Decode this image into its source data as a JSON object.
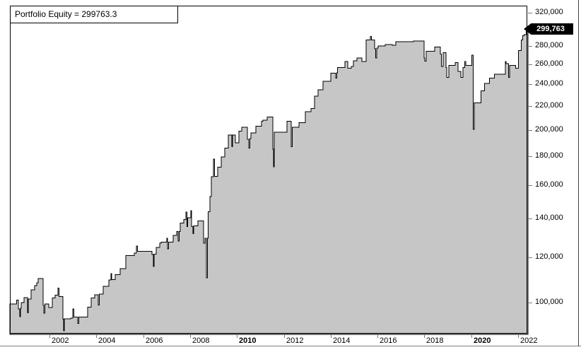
{
  "chart": {
    "title_label": "Portfolio Equity = 299763.3",
    "last_value_label": "299,763",
    "last_value": 299763.3,
    "colors": {
      "area_fill": "#C6C6C6",
      "line": "#000000",
      "badge_bg": "#000000",
      "badge_text": "#FFFFFF",
      "axis_text": "#000000",
      "tick": "#777777",
      "frame": "#000000",
      "background": "#FFFFFF"
    }
  },
  "chart_data": {
    "type": "area",
    "subtype": "step-after",
    "title": "Portfolio Equity = 299763.3",
    "legend_position": "top-left annotation box",
    "grid": false,
    "y_scale": "log",
    "y_axis_side": "right",
    "ylim": [
      88000,
      330000
    ],
    "xlim": [
      2000.3,
      2022.45
    ],
    "y_ticks": [
      320000,
      280000,
      260000,
      240000,
      220000,
      200000,
      180000,
      160000,
      140000,
      120000,
      100000
    ],
    "y_tick_labels": [
      "320,000",
      "280,000",
      "260,000",
      "240,000",
      "220,000",
      "200,000",
      "180,000",
      "160,000",
      "140,000",
      "120,000",
      "100,000"
    ],
    "x_ticks": [
      2002,
      2004,
      2006,
      2008,
      2010,
      2012,
      2014,
      2016,
      2018,
      2020,
      2022
    ],
    "x_tick_labels": [
      "2002",
      "2004",
      "2006",
      "2008",
      "2010",
      "2012",
      "2014",
      "2016",
      "2018",
      "2020",
      "2022"
    ],
    "bold_x_ticks": [
      2010,
      2020
    ],
    "final_value": 299763.3,
    "series": [
      {
        "name": "Portfolio Equity",
        "points": [
          [
            2000.31,
            99400
          ],
          [
            2000.59,
            101000
          ],
          [
            2000.67,
            97500
          ],
          [
            2000.73,
            94500
          ],
          [
            2000.77,
            97700
          ],
          [
            2000.8,
            100000
          ],
          [
            2000.91,
            102000
          ],
          [
            2001.06,
            96000
          ],
          [
            2001.1,
            101500
          ],
          [
            2001.22,
            105300
          ],
          [
            2001.37,
            107000
          ],
          [
            2001.46,
            108300
          ],
          [
            2001.52,
            110100
          ],
          [
            2001.73,
            98900
          ],
          [
            2001.76,
            95800
          ],
          [
            2001.8,
            99400
          ],
          [
            2001.97,
            98000
          ],
          [
            2002.12,
            101800
          ],
          [
            2002.24,
            103000
          ],
          [
            2002.36,
            106000
          ],
          [
            2002.4,
            102400
          ],
          [
            2002.57,
            93500
          ],
          [
            2002.6,
            89300
          ],
          [
            2002.64,
            93700
          ],
          [
            2002.9,
            94000
          ],
          [
            2003.0,
            97500
          ],
          [
            2003.04,
            94300
          ],
          [
            2003.21,
            92000
          ],
          [
            2003.25,
            94300
          ],
          [
            2003.63,
            98200
          ],
          [
            2003.78,
            101800
          ],
          [
            2003.93,
            103200
          ],
          [
            2004.08,
            99000
          ],
          [
            2004.12,
            103400
          ],
          [
            2004.29,
            106800
          ],
          [
            2004.53,
            109500
          ],
          [
            2004.62,
            112300
          ],
          [
            2004.66,
            109700
          ],
          [
            2004.81,
            111900
          ],
          [
            2005.02,
            114600
          ],
          [
            2005.26,
            120700
          ],
          [
            2005.62,
            122000
          ],
          [
            2005.71,
            125400
          ],
          [
            2005.75,
            122800
          ],
          [
            2006.37,
            121200
          ],
          [
            2006.43,
            115500
          ],
          [
            2006.47,
            121500
          ],
          [
            2006.55,
            124700
          ],
          [
            2006.71,
            127000
          ],
          [
            2006.77,
            127400
          ],
          [
            2007.0,
            129500
          ],
          [
            2007.04,
            124000
          ],
          [
            2007.08,
            127400
          ],
          [
            2007.28,
            131000
          ],
          [
            2007.43,
            132900
          ],
          [
            2007.49,
            128000
          ],
          [
            2007.53,
            133000
          ],
          [
            2007.58,
            137600
          ],
          [
            2007.73,
            139600
          ],
          [
            2007.82,
            143800
          ],
          [
            2007.86,
            135700
          ],
          [
            2007.9,
            140500
          ],
          [
            2008.03,
            144600
          ],
          [
            2008.07,
            135700
          ],
          [
            2008.12,
            131800
          ],
          [
            2008.16,
            136000
          ],
          [
            2008.33,
            138800
          ],
          [
            2008.58,
            127000
          ],
          [
            2008.64,
            129500
          ],
          [
            2008.7,
            110400
          ],
          [
            2008.74,
            129500
          ],
          [
            2008.77,
            144000
          ],
          [
            2008.85,
            153000
          ],
          [
            2008.91,
            165600
          ],
          [
            2009.0,
            178000
          ],
          [
            2009.04,
            166000
          ],
          [
            2009.18,
            172100
          ],
          [
            2009.33,
            179400
          ],
          [
            2009.48,
            185800
          ],
          [
            2009.63,
            196000
          ],
          [
            2009.78,
            187000
          ],
          [
            2009.82,
            196000
          ],
          [
            2009.93,
            190000
          ],
          [
            2010.08,
            199000
          ],
          [
            2010.21,
            202000
          ],
          [
            2010.45,
            192500
          ],
          [
            2010.51,
            186000
          ],
          [
            2010.55,
            193000
          ],
          [
            2010.6,
            197500
          ],
          [
            2010.81,
            203000
          ],
          [
            2011.05,
            207000
          ],
          [
            2011.11,
            208000
          ],
          [
            2011.29,
            210500
          ],
          [
            2011.53,
            185000
          ],
          [
            2011.56,
            172500
          ],
          [
            2011.6,
            198000
          ],
          [
            2012.14,
            207000
          ],
          [
            2012.32,
            187000
          ],
          [
            2012.36,
            202000
          ],
          [
            2012.65,
            206000
          ],
          [
            2012.92,
            215000
          ],
          [
            2013.16,
            218000
          ],
          [
            2013.31,
            229000
          ],
          [
            2013.46,
            235000
          ],
          [
            2013.67,
            243000
          ],
          [
            2014.01,
            251000
          ],
          [
            2014.22,
            246000
          ],
          [
            2014.26,
            251500
          ],
          [
            2014.3,
            257000
          ],
          [
            2014.61,
            263000
          ],
          [
            2014.73,
            256000
          ],
          [
            2014.88,
            258000
          ],
          [
            2014.97,
            264000
          ],
          [
            2015.12,
            267000
          ],
          [
            2015.33,
            263000
          ],
          [
            2015.51,
            287000
          ],
          [
            2015.7,
            291000
          ],
          [
            2015.74,
            287000
          ],
          [
            2015.88,
            277000
          ],
          [
            2015.92,
            267000
          ],
          [
            2015.96,
            277500
          ],
          [
            2016.03,
            280000
          ],
          [
            2016.33,
            281500
          ],
          [
            2016.63,
            281000
          ],
          [
            2016.78,
            285000
          ],
          [
            2017.53,
            285500
          ],
          [
            2017.99,
            267000
          ],
          [
            2018.02,
            263500
          ],
          [
            2018.08,
            274000
          ],
          [
            2018.44,
            279000
          ],
          [
            2018.68,
            271000
          ],
          [
            2018.72,
            258000
          ],
          [
            2018.8,
            272500
          ],
          [
            2018.92,
            257000
          ],
          [
            2018.96,
            247000
          ],
          [
            2019.04,
            259000
          ],
          [
            2019.31,
            262000
          ],
          [
            2019.43,
            253000
          ],
          [
            2019.55,
            247000
          ],
          [
            2019.64,
            257000
          ],
          [
            2019.73,
            263000
          ],
          [
            2019.77,
            259000
          ],
          [
            2020.03,
            270000
          ],
          [
            2020.09,
            200500
          ],
          [
            2020.13,
            223000
          ],
          [
            2020.42,
            234000
          ],
          [
            2020.57,
            241000
          ],
          [
            2020.78,
            246000
          ],
          [
            2020.99,
            250000
          ],
          [
            2021.45,
            263000
          ],
          [
            2021.49,
            261000
          ],
          [
            2021.6,
            247000
          ],
          [
            2021.64,
            259000
          ],
          [
            2021.9,
            256000
          ],
          [
            2022.02,
            275000
          ],
          [
            2022.14,
            287000
          ],
          [
            2022.2,
            292000
          ],
          [
            2022.26,
            293000
          ],
          [
            2022.35,
            299763
          ]
        ]
      }
    ]
  }
}
